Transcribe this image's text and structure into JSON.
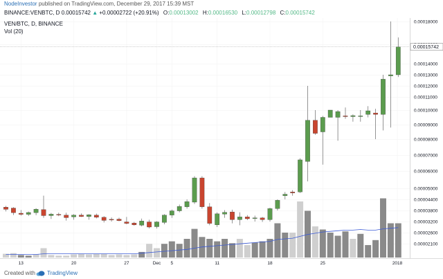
{
  "header": {
    "author": "NodeInvestor",
    "published": "published on TradingView.com, December 29, 2017 15:39 MST"
  },
  "info_bar": {
    "symbol": "BINANCE:VENBTC, D",
    "price": "0.00015742",
    "arrow": "▲",
    "change": "+0.00002722 (+20.91%)",
    "open_label": "O:",
    "open": "0.00013002",
    "high_label": "H:",
    "high": "0.00016530",
    "low_label": "L:",
    "low": "0.00012798",
    "close_label": "C:",
    "close": "0.00015742"
  },
  "legend": {
    "series": "VEN/BTC, D, BINANCE",
    "volume": "Vol (20)"
  },
  "footer": {
    "created_with": "Created with",
    "brand": "TradingView"
  },
  "colors": {
    "up": "#5b9c4e",
    "down": "#c9452f",
    "wick": "#666666",
    "vol_dark": "#8a8a8a",
    "vol_light": "#cfcfcf",
    "vol_ma": "#3c5bd6",
    "last_price_bg": "#ffffff"
  },
  "chart_data": {
    "type": "candlestick",
    "x_ticks": [
      "13",
      "20",
      "27",
      "Dec",
      "5",
      "11",
      "18",
      "25",
      "2018"
    ],
    "y_ticks": [
      "0.00018000",
      "0.00016000",
      "0.00014000",
      "0.00013000",
      "0.00012000",
      "0.00011000",
      "0.00010000",
      "0.00009000",
      "0.00008000",
      "0.00007000",
      "0.00006000",
      "0.00005000",
      "0.00004400",
      "0.00003800",
      "0.00003200",
      "0.00002600",
      "0.00002100"
    ],
    "last_price_label": "0.00015742",
    "candles": [
      {
        "o": 3.98e-05,
        "h": 4.05e-05,
        "l": 3.75e-05,
        "c": 3.86e-05
      },
      {
        "o": 3.93e-05,
        "h": 3.98e-05,
        "l": 3.55e-05,
        "c": 3.68e-05
      },
      {
        "o": 3.65e-05,
        "h": 3.82e-05,
        "l": 3.52e-05,
        "c": 3.59e-05
      },
      {
        "o": 3.59e-05,
        "h": 3.74e-05,
        "l": 3.5e-05,
        "c": 3.69e-05
      },
      {
        "o": 3.68e-05,
        "h": 3.92e-05,
        "l": 3.54e-05,
        "c": 3.87e-05
      },
      {
        "o": 3.85e-05,
        "h": 4.6e-05,
        "l": 3.4e-05,
        "c": 3.52e-05
      },
      {
        "o": 3.52e-05,
        "h": 3.67e-05,
        "l": 3.34e-05,
        "c": 3.6e-05
      },
      {
        "o": 3.59e-05,
        "h": 3.68e-05,
        "l": 3.49e-05,
        "c": 3.56e-05
      },
      {
        "o": 3.55e-05,
        "h": 3.68e-05,
        "l": 3.25e-05,
        "c": 3.41e-05
      },
      {
        "o": 3.45e-05,
        "h": 3.6e-05,
        "l": 3.3e-05,
        "c": 3.55e-05
      },
      {
        "o": 3.55e-05,
        "h": 3.64e-05,
        "l": 3.45e-05,
        "c": 3.47e-05
      },
      {
        "o": 3.47e-05,
        "h": 3.6e-05,
        "l": 3.3e-05,
        "c": 3.57e-05
      },
      {
        "o": 3.55e-05,
        "h": 3.63e-05,
        "l": 3.37e-05,
        "c": 3.43e-05
      },
      {
        "o": 3.43e-05,
        "h": 3.49e-05,
        "l": 3.15e-05,
        "c": 3.26e-05
      },
      {
        "o": 3.32e-05,
        "h": 3.42e-05,
        "l": 3.2e-05,
        "c": 3.3e-05
      },
      {
        "o": 3.33e-05,
        "h": 3.41e-05,
        "l": 3.22e-05,
        "c": 3.25e-05
      },
      {
        "o": 3.18e-05,
        "h": 3.45e-05,
        "l": 3.05e-05,
        "c": 3.1e-05
      },
      {
        "o": 3.12e-05,
        "h": 3.18e-05,
        "l": 2.98e-05,
        "c": 3.02e-05
      },
      {
        "o": 3e-05,
        "h": 3.36e-05,
        "l": 2.94e-05,
        "c": 3.23e-05
      },
      {
        "o": 3.18e-05,
        "h": 3.3e-05,
        "l": 2.83e-05,
        "c": 2.9e-05
      },
      {
        "o": 2.92e-05,
        "h": 3.22e-05,
        "l": 2.82e-05,
        "c": 3.18e-05
      },
      {
        "o": 3.15e-05,
        "h": 3.6e-05,
        "l": 3.05e-05,
        "c": 3.55e-05
      },
      {
        "o": 3.55e-05,
        "h": 3.85e-05,
        "l": 3.4e-05,
        "c": 3.78e-05
      },
      {
        "o": 3.78e-05,
        "h": 4.12e-05,
        "l": 3.7e-05,
        "c": 4.02e-05
      },
      {
        "o": 4e-05,
        "h": 4.4e-05,
        "l": 3.9e-05,
        "c": 4.28e-05
      },
      {
        "o": 4.25e-05,
        "h": 5.7e-05,
        "l": 4.15e-05,
        "c": 5.6e-05
      },
      {
        "o": 5.6e-05,
        "h": 5.7e-05,
        "l": 3.9e-05,
        "c": 4e-05
      },
      {
        "o": 4e-05,
        "h": 4.2e-05,
        "l": 3e-05,
        "c": 3.1e-05
      },
      {
        "o": 3.02e-05,
        "h": 3.7e-05,
        "l": 2.9e-05,
        "c": 3.62e-05
      },
      {
        "o": 3.6e-05,
        "h": 3.82e-05,
        "l": 3.4e-05,
        "c": 3.7e-05
      },
      {
        "o": 3.72e-05,
        "h": 3.84e-05,
        "l": 3.1e-05,
        "c": 3.3e-05
      },
      {
        "o": 3.3e-05,
        "h": 3.7e-05,
        "l": 3e-05,
        "c": 3.45e-05
      },
      {
        "o": 3.45e-05,
        "h": 3.55e-05,
        "l": 3.28e-05,
        "c": 3.35e-05
      },
      {
        "o": 3.37e-05,
        "h": 3.52e-05,
        "l": 3.2e-05,
        "c": 3.4e-05
      },
      {
        "o": 3.4e-05,
        "h": 3.45e-05,
        "l": 3.18e-05,
        "c": 3.3e-05
      },
      {
        "o": 3.3e-05,
        "h": 3.95e-05,
        "l": 3.2e-05,
        "c": 3.9e-05
      },
      {
        "o": 3.9e-05,
        "h": 4.4e-05,
        "l": 3.8e-05,
        "c": 4.35e-05
      },
      {
        "o": 4.6e-05,
        "h": 4.8e-05,
        "l": 4.4e-05,
        "c": 4.68e-05
      },
      {
        "o": 4.8e-05,
        "h": 4.9e-05,
        "l": 4.6e-05,
        "c": 4.75e-05
      },
      {
        "o": 4.8e-05,
        "h": 6.8e-05,
        "l": 4.75e-05,
        "c": 6.7e-05
      },
      {
        "o": 6.6e-05,
        "h": 0.00012,
        "l": 5.4e-05,
        "c": 9.3e-05
      },
      {
        "o": 9.3e-05,
        "h": 0.0001,
        "l": 8.3e-05,
        "c": 8.4e-05
      },
      {
        "o": 8.5e-05,
        "h": 9.6e-05,
        "l": 6.4e-05,
        "c": 9.5e-05
      },
      {
        "o": 9.5e-05,
        "h": 0.0001,
        "l": 9.5e-05,
        "c": 0.0001
      },
      {
        "o": 9.5e-05,
        "h": 0.0001,
        "l": 7.9e-05,
        "c": 9.9e-05
      },
      {
        "o": 9.6e-05,
        "h": 0.000102,
        "l": 9.4e-05,
        "c": 9.55e-05
      },
      {
        "o": 9.55e-05,
        "h": 9.7e-05,
        "l": 9.2e-05,
        "c": 9.62e-05
      },
      {
        "o": 9.58e-05,
        "h": 0.0001,
        "l": 9.2e-05,
        "c": 9.6e-05
      },
      {
        "o": 9.7e-05,
        "h": 0.000103,
        "l": 9.5e-05,
        "c": 9.95e-05
      },
      {
        "o": 9.8e-05,
        "h": 0.000101,
        "l": 8e-05,
        "c": 9.7e-05
      },
      {
        "o": 9.7e-05,
        "h": 0.00013,
        "l": 8.6e-05,
        "c": 0.000126
      },
      {
        "o": 0.000129,
        "h": 0.00018,
        "l": 8.8e-05,
        "c": 0.00013
      },
      {
        "o": 0.00013,
        "h": 0.000166,
        "l": 0.000128,
        "c": 0.0001574
      }
    ],
    "volume_light_flags": [
      1,
      1,
      0,
      0,
      1,
      1,
      1,
      1,
      1,
      1,
      1,
      1,
      1,
      1,
      1,
      1,
      1,
      1,
      0,
      1,
      1,
      0,
      0,
      0,
      0,
      0,
      0,
      0,
      0,
      0,
      0,
      1,
      1,
      0,
      0,
      0,
      0,
      0,
      1,
      1,
      0,
      1,
      0,
      0,
      0,
      0,
      1,
      0,
      0,
      0,
      0,
      0,
      0
    ],
    "volume": [
      0.06,
      0.07,
      0.04,
      0.03,
      0.05,
      0.15,
      0.04,
      0.03,
      0.03,
      0.05,
      0.06,
      0.05,
      0.06,
      0.06,
      0.04,
      0.05,
      0.04,
      0.05,
      0.09,
      0.22,
      0.15,
      0.22,
      0.26,
      0.22,
      0.3,
      0.46,
      0.33,
      0.3,
      0.26,
      0.3,
      0.23,
      0.3,
      0.2,
      0.24,
      0.26,
      0.3,
      0.55,
      0.4,
      0.4,
      0.9,
      0.75,
      0.5,
      0.45,
      0.4,
      0.35,
      0.42,
      0.3,
      0.38,
      0.2,
      0.28,
      0.95,
      0.55,
      0.55
    ],
    "vol_ma": [
      0.05,
      0.05,
      0.05,
      0.05,
      0.05,
      0.06,
      0.06,
      0.06,
      0.06,
      0.06,
      0.06,
      0.06,
      0.06,
      0.06,
      0.06,
      0.06,
      0.06,
      0.06,
      0.07,
      0.08,
      0.09,
      0.1,
      0.11,
      0.12,
      0.13,
      0.15,
      0.17,
      0.18,
      0.19,
      0.2,
      0.21,
      0.22,
      0.23,
      0.24,
      0.25,
      0.26,
      0.29,
      0.3,
      0.31,
      0.34,
      0.37,
      0.39,
      0.41,
      0.42,
      0.43,
      0.44,
      0.44,
      0.45,
      0.44,
      0.44,
      0.46,
      0.47,
      0.48
    ]
  }
}
